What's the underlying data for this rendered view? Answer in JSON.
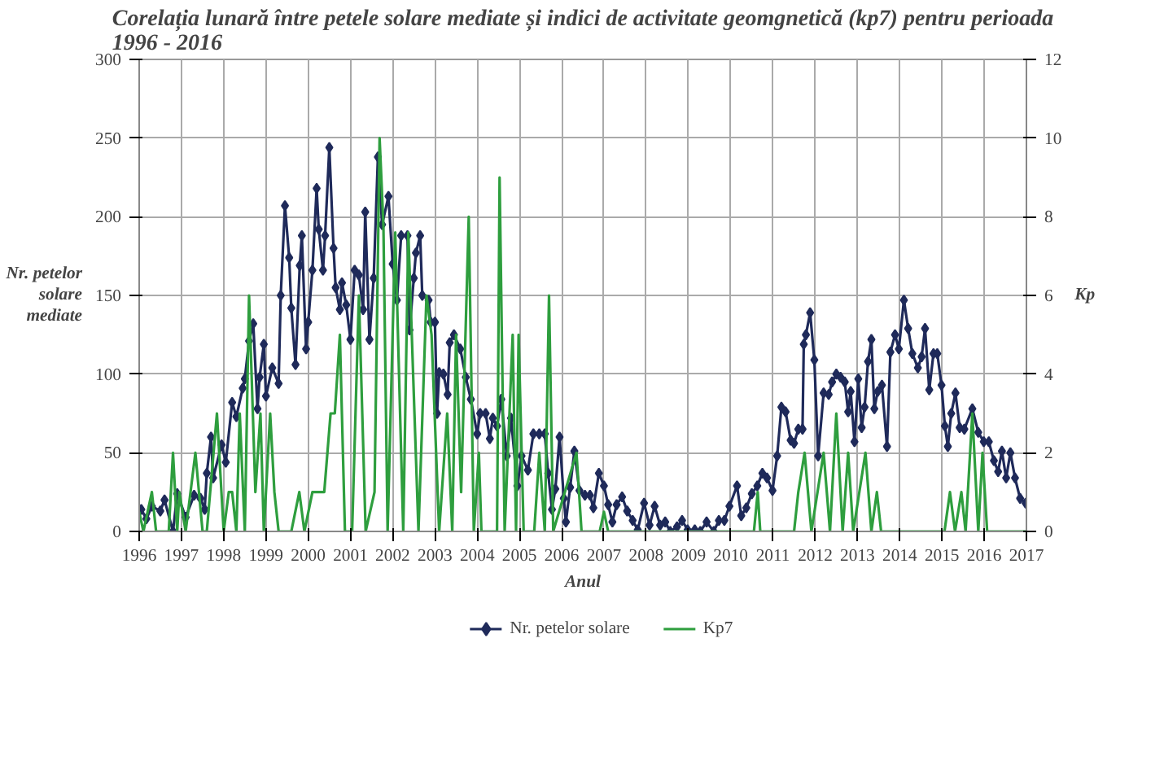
{
  "chart_data": {
    "type": "line",
    "title": "Corelația lunară între petele solare mediate și indici de activitate geomgnetică (kp7) pentru perioada\n1996 - 2016",
    "xlabel": "Anul",
    "ylabel": "Nr. petelor\nsolare\nmediate",
    "y2label": "Kp",
    "xlim": [
      1996,
      2017
    ],
    "xticks": [
      1996,
      1997,
      1998,
      1999,
      2000,
      2001,
      2002,
      2003,
      2004,
      2005,
      2006,
      2007,
      2008,
      2009,
      2010,
      2011,
      2012,
      2013,
      2014,
      2015,
      2016,
      2017
    ],
    "ylim": [
      0,
      300
    ],
    "yticks": [
      0,
      50,
      100,
      150,
      200,
      250,
      300
    ],
    "y2lim": [
      0,
      12
    ],
    "y2ticks": [
      0,
      2,
      4,
      6,
      8,
      10,
      12
    ],
    "grid": true,
    "legend": "bottom",
    "series": [
      {
        "name": "Nr. petelor solare",
        "color": "#1f2a5a",
        "marker": "diamond",
        "x": [
          1996.05,
          1996.17,
          1996.3,
          1996.5,
          1996.6,
          1996.8,
          1996.9,
          1997.1,
          1997.3,
          1997.45,
          1997.55,
          1997.6,
          1997.7,
          1997.75,
          1997.95,
          1998.05,
          1998.2,
          1998.3,
          1998.45,
          1998.5,
          1998.6,
          1998.7,
          1998.8,
          1998.85,
          1998.95,
          1999.0,
          1999.15,
          1999.3,
          1999.35,
          1999.45,
          1999.55,
          1999.6,
          1999.7,
          1999.8,
          1999.85,
          1999.95,
          2000.0,
          2000.1,
          2000.2,
          2000.25,
          2000.35,
          2000.4,
          2000.5,
          2000.6,
          2000.65,
          2000.75,
          2000.8,
          2000.9,
          2001.0,
          2001.1,
          2001.2,
          2001.3,
          2001.35,
          2001.45,
          2001.55,
          2001.65,
          2001.75,
          2001.9,
          2002.0,
          2002.1,
          2002.2,
          2002.35,
          2002.4,
          2002.5,
          2002.55,
          2002.65,
          2002.7,
          2002.85,
          2002.9,
          2003.0,
          2003.05,
          2003.1,
          2003.2,
          2003.3,
          2003.35,
          2003.45,
          2003.6,
          2003.73,
          2003.85,
          2004.0,
          2004.07,
          2004.2,
          2004.3,
          2004.37,
          2004.47,
          2004.57,
          2004.7,
          2004.8,
          2004.95,
          2005.05,
          2005.2,
          2005.33,
          2005.47,
          2005.6,
          2005.68,
          2005.77,
          2005.85,
          2005.95,
          2006.05,
          2006.1,
          2006.2,
          2006.3,
          2006.42,
          2006.55,
          2006.67,
          2006.75,
          2006.88,
          2007.0,
          2007.1,
          2007.2,
          2007.3,
          2007.43,
          2007.55,
          2007.68,
          2007.8,
          2007.95,
          2008.08,
          2008.2,
          2008.33,
          2008.45,
          2008.57,
          2008.73,
          2008.85,
          2008.98,
          2009.15,
          2009.28,
          2009.43,
          2009.6,
          2009.72,
          2009.85,
          2009.97,
          2010.15,
          2010.25,
          2010.37,
          2010.5,
          2010.63,
          2010.75,
          2010.86,
          2010.99,
          2011.1,
          2011.2,
          2011.3,
          2011.42,
          2011.5,
          2011.6,
          2011.7,
          2011.73,
          2011.78,
          2011.88,
          2011.98,
          2012.07,
          2012.2,
          2012.32,
          2012.4,
          2012.5,
          2012.6,
          2012.7,
          2012.78,
          2012.84,
          2012.93,
          2013.02,
          2013.1,
          2013.17,
          2013.25,
          2013.33,
          2013.4,
          2013.48,
          2013.58,
          2013.7,
          2013.78,
          2013.89,
          2013.98,
          2014.1,
          2014.2,
          2014.3,
          2014.43,
          2014.52,
          2014.6,
          2014.7,
          2014.8,
          2014.89,
          2014.99,
          2015.07,
          2015.14,
          2015.22,
          2015.32,
          2015.42,
          2015.53,
          2015.72,
          2015.86,
          2015.99,
          2016.11,
          2016.23,
          2016.33,
          2016.42,
          2016.52,
          2016.62,
          2016.73,
          2016.85,
          2016.98
        ],
        "values": [
          14,
          8,
          16,
          13,
          20,
          0,
          24,
          9,
          23,
          21,
          14,
          37,
          60,
          34,
          55,
          44,
          82,
          73,
          91,
          97,
          121,
          132,
          78,
          98,
          119,
          86,
          104,
          94,
          150,
          207,
          174,
          142,
          106,
          169,
          188,
          116,
          133,
          166,
          218,
          192,
          166,
          188,
          244,
          180,
          155,
          141,
          158,
          144,
          122,
          166,
          163,
          141,
          203,
          122,
          161,
          238,
          195,
          213,
          170,
          147,
          188,
          188,
          128,
          161,
          177,
          188,
          150,
          147,
          133,
          133,
          75,
          101,
          100,
          87,
          120,
          125,
          116,
          98,
          84,
          62,
          75,
          75,
          59,
          72,
          67,
          84,
          48,
          72,
          29,
          48,
          39,
          62,
          62,
          62,
          37,
          14,
          27,
          60,
          21,
          6,
          28,
          51,
          26,
          23,
          23,
          15,
          37,
          29,
          17,
          6,
          17,
          22,
          13,
          7,
          1,
          18,
          4,
          16,
          4,
          6,
          0,
          3,
          7,
          1,
          1,
          0,
          6,
          0,
          7,
          7,
          16,
          29,
          10,
          15,
          24,
          29,
          37,
          34,
          26,
          48,
          79,
          76,
          58,
          56,
          65,
          65,
          119,
          125,
          139,
          109,
          48,
          88,
          87,
          95,
          100,
          98,
          95,
          76,
          89,
          57,
          97,
          66,
          79,
          108,
          122,
          78,
          89,
          93,
          54,
          114,
          125,
          116,
          147,
          129,
          113,
          104,
          111,
          129,
          90,
          113,
          113,
          93,
          67,
          54,
          75,
          88,
          66,
          65,
          78,
          63,
          57,
          57,
          45,
          38,
          51,
          34,
          50,
          34,
          21,
          18
        ]
      },
      {
        "name": "Kp7",
        "color": "#2e9e3e",
        "axis": "y2",
        "marker": "none",
        "x": [
          1996.0,
          1996.1,
          1996.3,
          1996.4,
          1996.7,
          1996.8,
          1996.9,
          1996.95,
          1997.1,
          1997.33,
          1997.5,
          1997.6,
          1997.84,
          1998.0,
          1998.12,
          1998.2,
          1998.3,
          1998.38,
          1998.5,
          1998.6,
          1998.75,
          1998.87,
          1998.95,
          1999.1,
          1999.2,
          1999.3,
          1999.6,
          1999.79,
          1999.91,
          2000.1,
          2000.28,
          2000.38,
          2000.53,
          2000.63,
          2000.75,
          2000.87,
          2001.04,
          2001.2,
          2001.36,
          2001.57,
          2001.69,
          2001.78,
          2001.88,
          2002.06,
          2002.25,
          2002.37,
          2002.61,
          2002.8,
          2002.92,
          2003.1,
          2003.29,
          2003.41,
          2003.5,
          2003.62,
          2003.8,
          2003.92,
          2004.04,
          2004.1,
          2004.47,
          2004.53,
          2004.65,
          2004.84,
          2004.92,
          2004.98,
          2005.1,
          2005.35,
          2005.47,
          2005.6,
          2005.7,
          2005.8,
          2006.35,
          2006.47,
          2006.9,
          2007.0,
          2007.1,
          2010.55,
          2010.64,
          2010.7,
          2011.5,
          2011.6,
          2011.75,
          2011.91,
          2012.2,
          2012.35,
          2012.5,
          2012.65,
          2012.78,
          2012.9,
          2013.19,
          2013.33,
          2013.46,
          2013.56,
          2015.06,
          2015.19,
          2015.31,
          2015.46,
          2015.56,
          2015.72,
          2015.86,
          2015.96,
          2016.07,
          2017.0
        ],
        "values": [
          0.5,
          0,
          1,
          0,
          0,
          2,
          0,
          1,
          0,
          2,
          0,
          0,
          3,
          0,
          1,
          1,
          0,
          3,
          0,
          6,
          1,
          3,
          0,
          3,
          1,
          0,
          0,
          1,
          0,
          1,
          1,
          1,
          3,
          3,
          5,
          0,
          0,
          6,
          0,
          1,
          10,
          7.8,
          0,
          7.6,
          0,
          7.6,
          0,
          6,
          5,
          0,
          3,
          0,
          5,
          1,
          8,
          0,
          2,
          0,
          0,
          9,
          0,
          5,
          0,
          5,
          0,
          0,
          2,
          0,
          6,
          0,
          2,
          0,
          0,
          0.5,
          0,
          0,
          1,
          0,
          0,
          1,
          2,
          0,
          2,
          0,
          3,
          0,
          2,
          0,
          2,
          0,
          1,
          0,
          0,
          1,
          0,
          1,
          0,
          3,
          0,
          2,
          0,
          0
        ]
      }
    ]
  }
}
